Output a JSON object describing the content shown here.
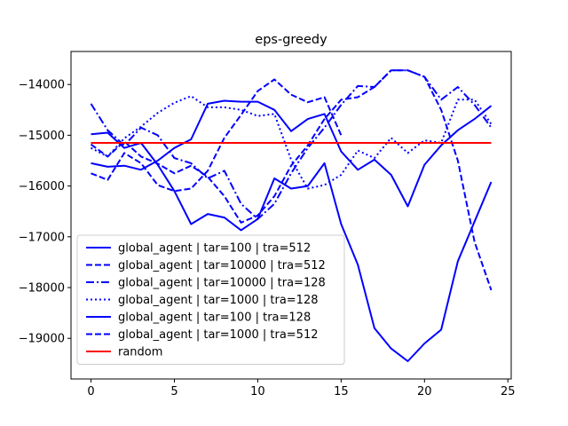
{
  "chart_data": {
    "type": "line",
    "title": "eps-greedy",
    "xlabel": "",
    "ylabel": "",
    "xlim": [
      -1.2,
      25.2
    ],
    "ylim": [
      -19800,
      -13350
    ],
    "xticks": [
      0,
      5,
      10,
      15,
      20,
      25
    ],
    "yticks": [
      -19000,
      -18000,
      -17000,
      -16000,
      -15000,
      -14000
    ],
    "ytick_labels": [
      "−19000",
      "−18000",
      "−17000",
      "−16000",
      "−15000",
      "−14000"
    ],
    "grid": false,
    "legend_position": "lower-left",
    "series": [
      {
        "name": "global_agent | tar=100 | tra=512",
        "color": "#0000ff",
        "style": "solid",
        "x": [
          0,
          1,
          2,
          3,
          4,
          5,
          6,
          7,
          8,
          9,
          10,
          11,
          12,
          13,
          14,
          15,
          16,
          17,
          18,
          19,
          20,
          21,
          22,
          23,
          24
        ],
        "y": [
          -15550,
          -15620,
          -15600,
          -15680,
          -15500,
          -15250,
          -15080,
          -14380,
          -14320,
          -14340,
          -14340,
          -14500,
          -14920,
          -14680,
          -14580,
          -15320,
          -15680,
          -15480,
          -15780,
          -16400,
          -15580,
          -15200,
          -14900,
          -14680,
          -14420
        ]
      },
      {
        "name": "global_agent | tar=10000 | tra=512",
        "color": "#0000ff",
        "style": "dashed",
        "x": [
          0,
          1,
          2,
          3,
          4,
          5,
          6,
          7,
          8,
          9,
          10,
          11,
          12,
          13,
          14,
          15,
          16,
          17,
          18,
          19,
          20,
          21,
          22,
          23,
          24
        ],
        "y": [
          -15180,
          -15420,
          -15120,
          -15420,
          -15560,
          -15750,
          -15600,
          -15820,
          -16200,
          -16720,
          -16580,
          -16200,
          -15600,
          -15200,
          -14680,
          -14300,
          -14250,
          -14050,
          -13720,
          -13720,
          -13850,
          -14500,
          -15500,
          -17100,
          -18050
        ]
      },
      {
        "name": "global_agent | tar=10000 | tra=128",
        "color": "#0000ff",
        "style": "dashdot",
        "x": [
          0,
          1,
          2,
          3,
          4,
          5,
          6,
          7,
          8,
          9,
          10,
          11,
          12,
          13,
          14,
          15,
          16,
          17,
          18,
          19,
          20,
          21,
          22,
          23,
          24
        ],
        "y": [
          -14380,
          -14900,
          -15200,
          -14850,
          -15000,
          -15450,
          -15550,
          -15850,
          -15700,
          -16350,
          -16650,
          -16350,
          -15750,
          -15250,
          -14850,
          -14400,
          -14030,
          -14050,
          -13720,
          -13720,
          -13850,
          -14300,
          -14050,
          -14400,
          -14850
        ]
      },
      {
        "name": "global_agent | tar=1000 | tra=128",
        "color": "#0000ff",
        "style": "dotted",
        "x": [
          0,
          1,
          2,
          3,
          4,
          5,
          6,
          7,
          8,
          9,
          10,
          11,
          12,
          13,
          14,
          15,
          16,
          17,
          18,
          19,
          20,
          21,
          22,
          23,
          24
        ],
        "y": [
          -15250,
          -15420,
          -15060,
          -14830,
          -14560,
          -14360,
          -14230,
          -14450,
          -14450,
          -14500,
          -14620,
          -14580,
          -15480,
          -16050,
          -15980,
          -15780,
          -15300,
          -15450,
          -15050,
          -15350,
          -15100,
          -15150,
          -14300,
          -14300,
          -14780
        ]
      },
      {
        "name": "global_agent | tar=100 | tra=128",
        "color": "#0000ff",
        "style": "solid",
        "x": [
          0,
          1,
          2,
          3,
          4,
          5,
          6,
          7,
          8,
          9,
          10,
          11,
          12,
          13,
          14,
          15,
          16,
          17,
          18,
          19,
          20,
          21,
          22,
          23,
          24
        ],
        "y": [
          -14980,
          -14950,
          -15250,
          -15150,
          -15580,
          -16100,
          -16750,
          -16550,
          -16620,
          -16870,
          -16650,
          -15850,
          -16050,
          -16000,
          -15550,
          -16750,
          -17550,
          -18800,
          -19200,
          -19450,
          -19100,
          -18830,
          -17480,
          -16700,
          -15920
        ]
      },
      {
        "name": "global_agent | tar=1000 | tra=512",
        "color": "#0000ff",
        "style": "dashed",
        "x": [
          0,
          1,
          2,
          3,
          4,
          5,
          6,
          7,
          8,
          9,
          10,
          11,
          12,
          13,
          14,
          15
        ],
        "y": [
          -15750,
          -15880,
          -15350,
          -15550,
          -15980,
          -16100,
          -16050,
          -15700,
          -15050,
          -14600,
          -14130,
          -13900,
          -14200,
          -14350,
          -14250,
          -15000
        ]
      },
      {
        "name": "random",
        "color": "#ff0000",
        "style": "solid",
        "x": [
          0,
          24
        ],
        "y": [
          -15150,
          -15150
        ]
      }
    ]
  }
}
